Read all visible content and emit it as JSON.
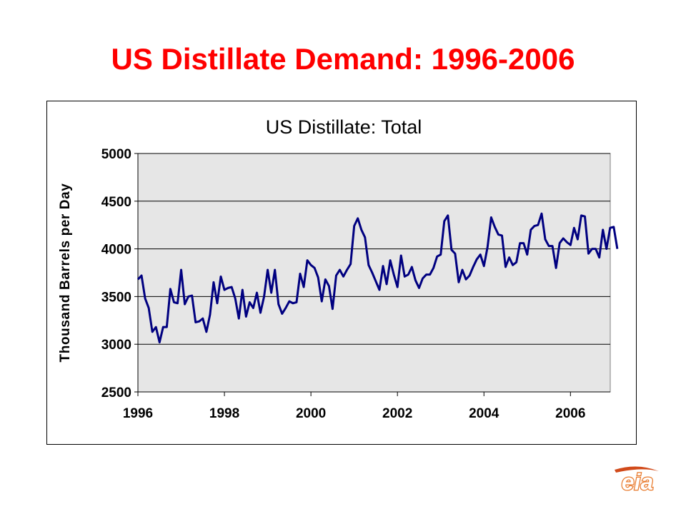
{
  "slide": {
    "title": "US Distillate Demand:  1996-2006"
  },
  "logo": {
    "text": "eia",
    "colors": {
      "fill": "#ffffff",
      "stroke": "#e8792b",
      "swoosh": "#d14a1a"
    }
  },
  "colors": {
    "title": "#ff0000",
    "line": "#000080",
    "plot_bg": "#e6e6e6",
    "grid": "#000000"
  },
  "chart_data": {
    "type": "line",
    "title": "US Distillate:  Total",
    "xlabel": "",
    "ylabel": "Thousand Barrels per Day",
    "xlim": [
      1996.0,
      2006.92
    ],
    "ylim": [
      2500,
      5000
    ],
    "x_ticks": [
      1996,
      1998,
      2000,
      2002,
      2004,
      2006
    ],
    "y_ticks": [
      2500,
      3000,
      3500,
      4000,
      4500,
      5000
    ],
    "grid": "horizontal",
    "legend": "none",
    "series": [
      {
        "frequency": "monthly",
        "start": "1996-01",
        "values": [
          3680,
          3720,
          3480,
          3380,
          3130,
          3180,
          3020,
          3180,
          3180,
          3580,
          3440,
          3430,
          3780,
          3420,
          3500,
          3510,
          3230,
          3240,
          3270,
          3130,
          3310,
          3650,
          3430,
          3710,
          3570,
          3590,
          3600,
          3480,
          3270,
          3570,
          3290,
          3440,
          3380,
          3540,
          3330,
          3500,
          3780,
          3540,
          3780,
          3420,
          3320,
          3380,
          3450,
          3430,
          3440,
          3740,
          3600,
          3880,
          3830,
          3800,
          3700,
          3450,
          3680,
          3610,
          3370,
          3720,
          3780,
          3710,
          3780,
          3840,
          4240,
          4320,
          4200,
          4120,
          3830,
          3750,
          3660,
          3570,
          3820,
          3630,
          3880,
          3730,
          3600,
          3930,
          3710,
          3730,
          3810,
          3670,
          3590,
          3690,
          3730,
          3730,
          3800,
          3920,
          3940,
          4290,
          4350,
          3990,
          3950,
          3650,
          3780,
          3680,
          3720,
          3810,
          3890,
          3940,
          3820,
          4020,
          4330,
          4230,
          4150,
          4140,
          3810,
          3910,
          3830,
          3860,
          4060,
          4060,
          3940,
          4200,
          4240,
          4250,
          4370,
          4100,
          4030,
          4030,
          3800,
          4060,
          4110,
          4070,
          4040,
          4220,
          4100,
          4350,
          4340,
          3950,
          4000,
          4000,
          3910,
          4200,
          4000,
          4220,
          4230,
          4000
        ]
      }
    ]
  }
}
